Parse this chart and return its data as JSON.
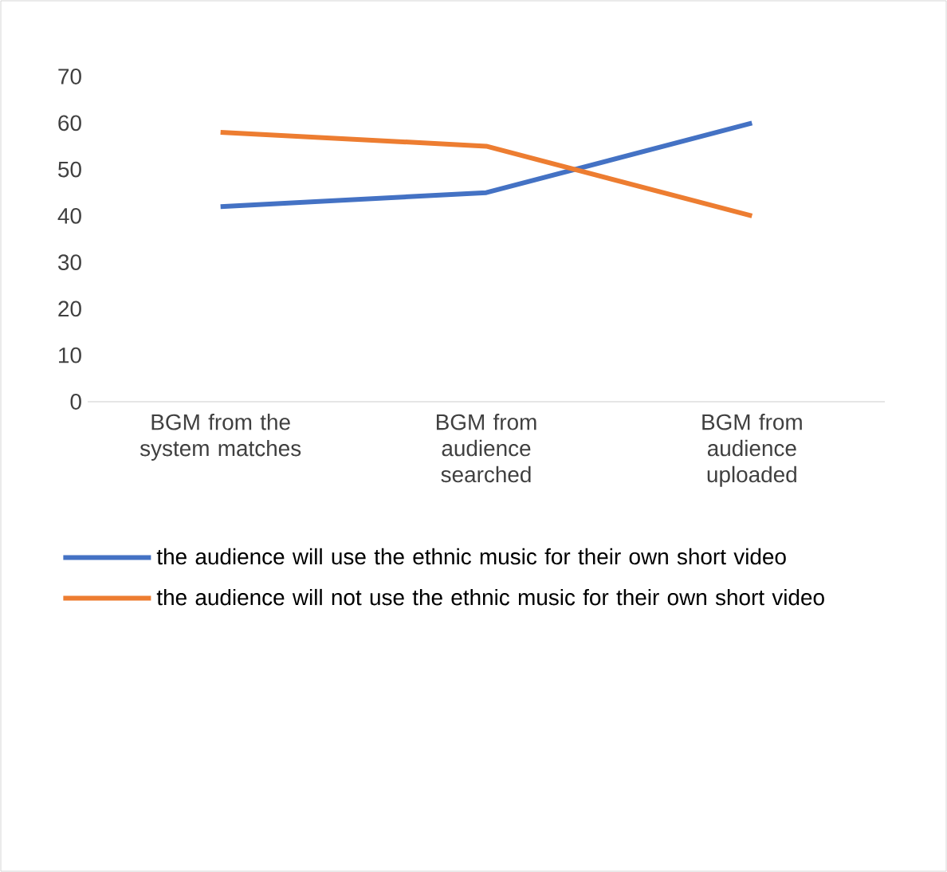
{
  "chart_data": {
    "type": "line",
    "categories": [
      "BGM from the system matches",
      "BGM from audience searched",
      "BGM from audience uploaded"
    ],
    "series": [
      {
        "name": "the audience will use the ethnic music for their own short video",
        "color": "#4472c4",
        "values": [
          42,
          45,
          60
        ]
      },
      {
        "name": "the audience will not use the ethnic music for their own short video",
        "color": "#ed7d31",
        "values": [
          58,
          55,
          40
        ]
      }
    ],
    "ylim": [
      0,
      70
    ],
    "yticks": [
      0,
      10,
      20,
      30,
      40,
      50,
      60,
      70
    ],
    "legend": "bottom"
  }
}
